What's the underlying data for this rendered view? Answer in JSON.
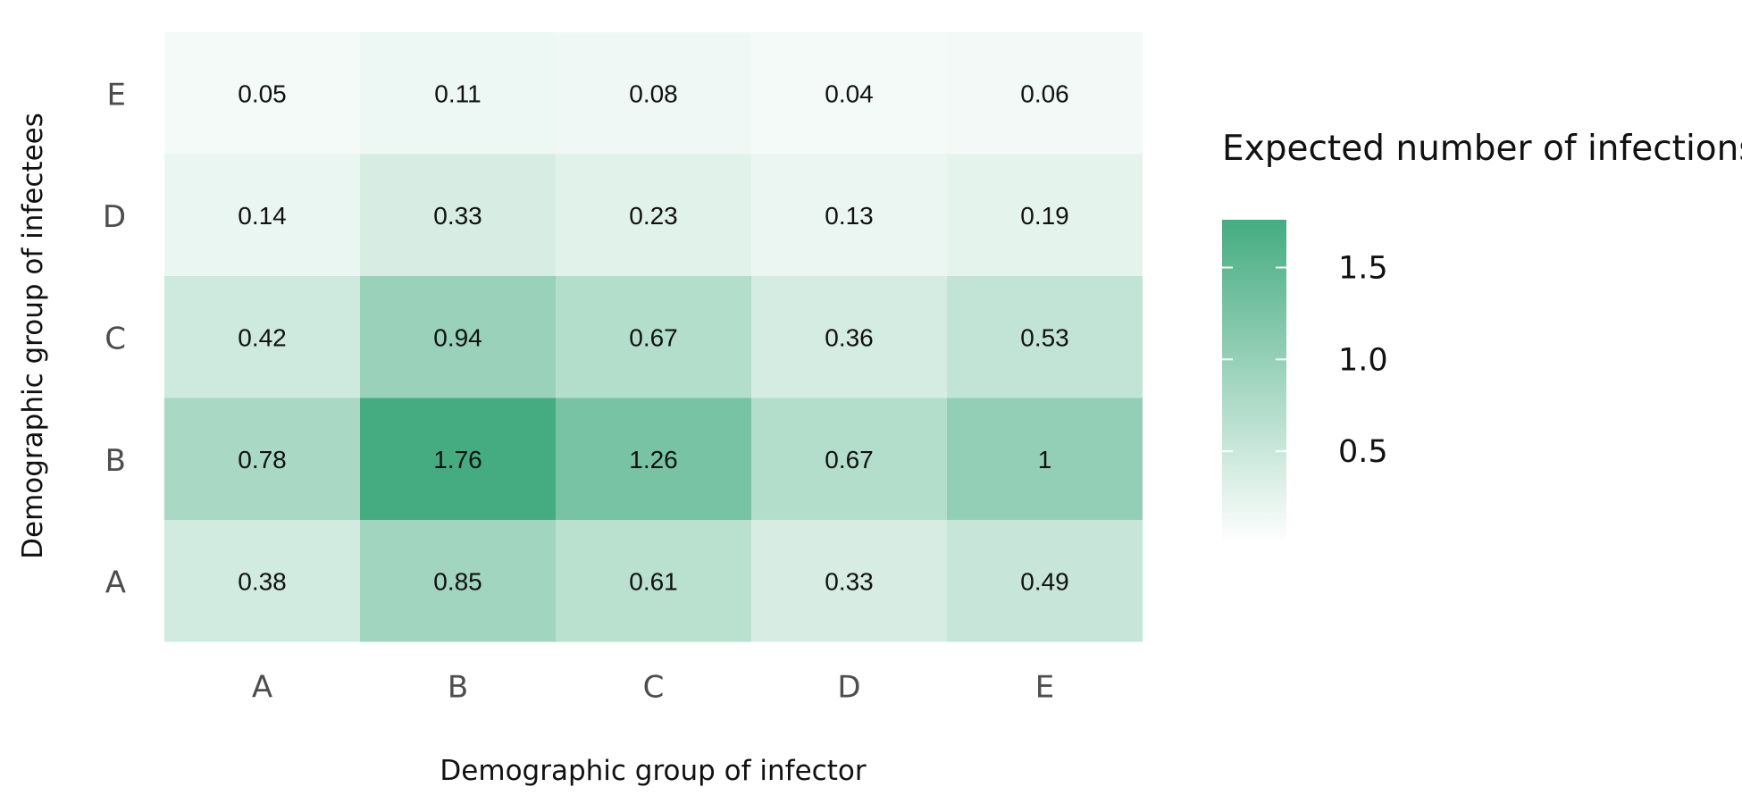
{
  "chart_data": {
    "type": "heatmap",
    "x_categories": [
      "A",
      "B",
      "C",
      "D",
      "E"
    ],
    "y_categories": [
      "A",
      "B",
      "C",
      "D",
      "E"
    ],
    "values": [
      [
        0.38,
        0.85,
        0.61,
        0.33,
        0.49
      ],
      [
        0.78,
        1.76,
        1.26,
        0.67,
        1
      ],
      [
        0.42,
        0.94,
        0.67,
        0.36,
        0.53
      ],
      [
        0.14,
        0.33,
        0.23,
        0.13,
        0.19
      ],
      [
        0.05,
        0.11,
        0.08,
        0.04,
        0.06
      ]
    ],
    "value_labels": [
      [
        "0.38",
        "0.85",
        "0.61",
        "0.33",
        "0.49"
      ],
      [
        "0.78",
        "1.76",
        "1.26",
        "0.67",
        "1"
      ],
      [
        "0.42",
        "0.94",
        "0.67",
        "0.36",
        "0.53"
      ],
      [
        "0.14",
        "0.33",
        "0.23",
        "0.13",
        "0.19"
      ],
      [
        "0.05",
        "0.11",
        "0.08",
        "0.04",
        "0.06"
      ]
    ],
    "xlabel": "Demographic group of infector",
    "ylabel": "Demographic group of infectees",
    "color_scale": {
      "low_color": "#ffffff",
      "high_color": "#45ac81",
      "range": [
        0,
        1.76
      ]
    },
    "legend": {
      "title": "Expected number of infections",
      "ticks": [
        1.5,
        1.0,
        0.5
      ],
      "tick_labels": [
        "1.5",
        "1.0",
        "0.5"
      ],
      "placement": "right"
    },
    "grid": false
  }
}
